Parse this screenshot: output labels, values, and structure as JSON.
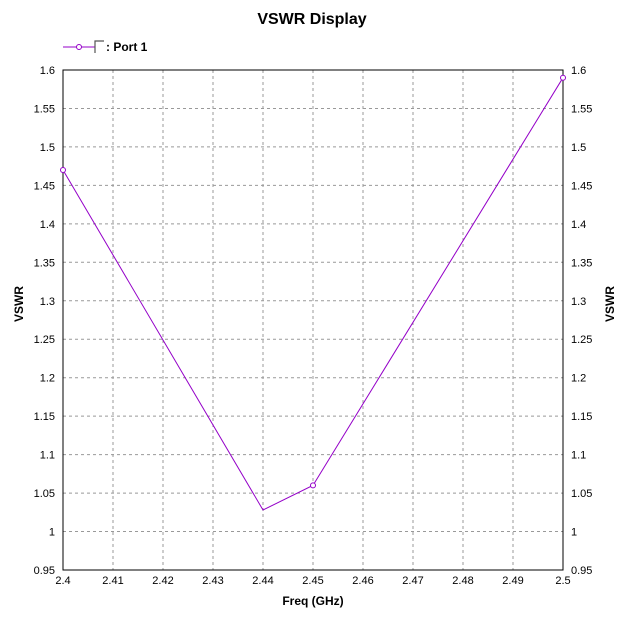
{
  "chart_data": {
    "type": "line",
    "title": "VSWR Display",
    "xlabel": "Freq (GHz)",
    "ylabel": "VSWR",
    "ylabel_right": "VSWR",
    "xlim": [
      2.4,
      2.5
    ],
    "ylim": [
      0.95,
      1.6
    ],
    "xticks": [
      "2.4",
      "2.41",
      "2.42",
      "2.43",
      "2.44",
      "2.45",
      "2.46",
      "2.47",
      "2.48",
      "2.49",
      "2.5"
    ],
    "yticks": [
      "0.95",
      "1",
      "1.05",
      "1.1",
      "1.15",
      "1.2",
      "1.25",
      "1.3",
      "1.35",
      "1.4",
      "1.45",
      "1.5",
      "1.55",
      "1.6"
    ],
    "grid": true,
    "legend_position": "top-left",
    "series": [
      {
        "name": ": Port 1",
        "color": "#9400c8",
        "x": [
          2.4,
          2.44,
          2.45,
          2.5
        ],
        "y": [
          1.47,
          1.028,
          1.06,
          1.59
        ],
        "markers_at": [
          2.4,
          2.45,
          2.5
        ]
      }
    ]
  }
}
